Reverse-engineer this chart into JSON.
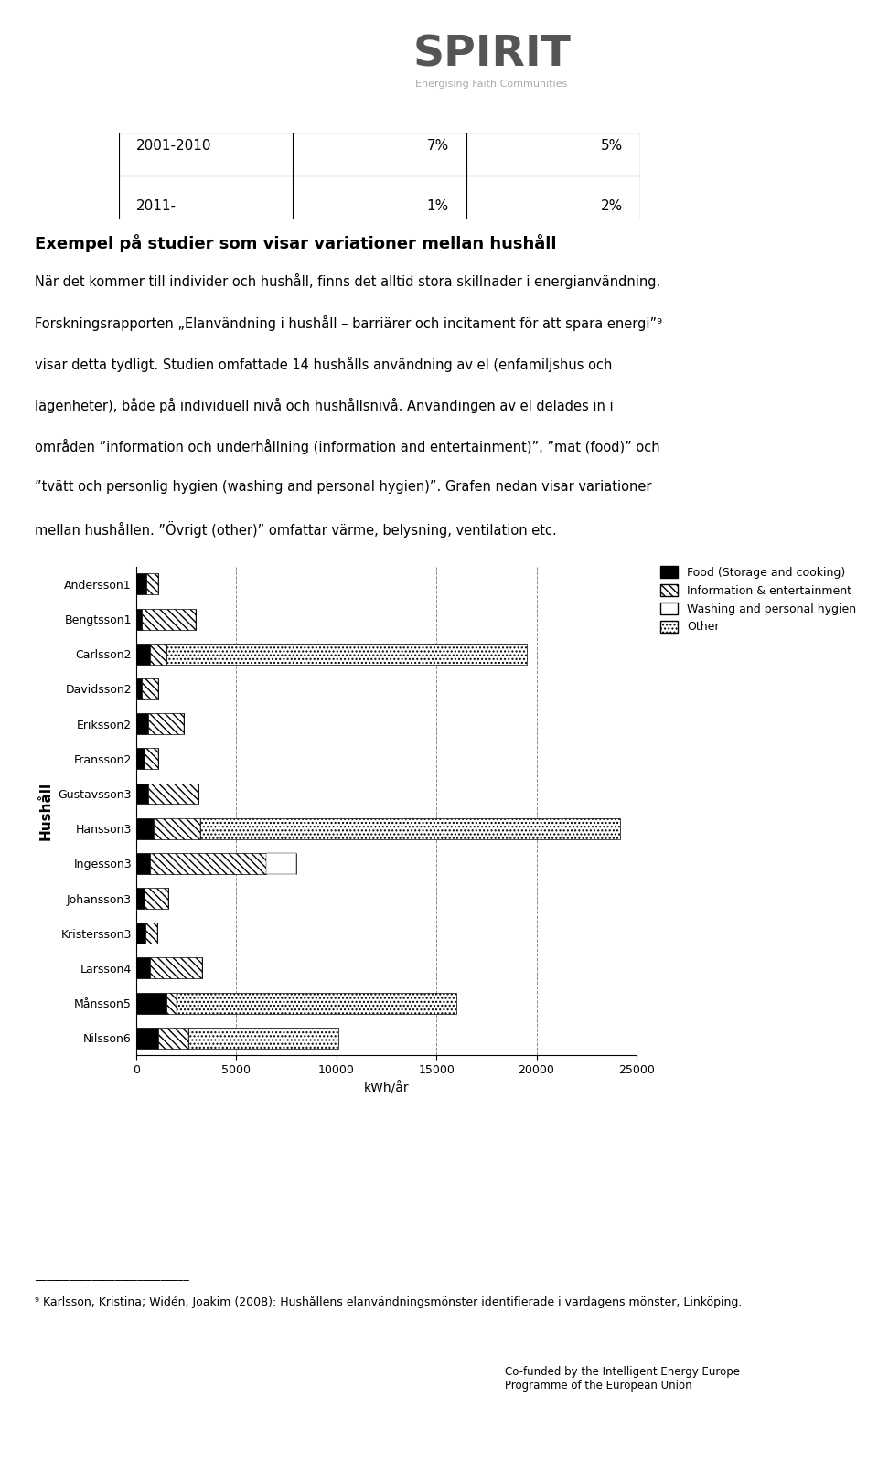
{
  "households": [
    "Andersson1",
    "Bengtsson1",
    "Carlsson2",
    "Davidsson2",
    "Eriksson2",
    "Fransson2",
    "Gustavsson3",
    "Hansson3",
    "Ingesson3",
    "Johansson3",
    "Kristersson3",
    "Larsson4",
    "Månsson5",
    "Nilsson6"
  ],
  "food": [
    500,
    300,
    700,
    300,
    600,
    400,
    600,
    900,
    700,
    400,
    450,
    700,
    1500,
    1100
  ],
  "info_entertainment": [
    600,
    2700,
    800,
    800,
    1800,
    700,
    2500,
    2300,
    5800,
    1200,
    600,
    2600,
    500,
    1500
  ],
  "washing": [
    0,
    0,
    0,
    0,
    0,
    0,
    0,
    0,
    1500,
    0,
    0,
    0,
    0,
    0
  ],
  "other": [
    0,
    0,
    18000,
    0,
    0,
    0,
    0,
    21000,
    0,
    0,
    0,
    0,
    14000,
    7500
  ],
  "xlim": [
    0,
    25000
  ],
  "xticks": [
    0,
    5000,
    10000,
    15000,
    20000,
    25000
  ],
  "xlabel": "kWh/år",
  "ylabel": "Hushåll",
  "legend_labels": [
    "Food (Storage and cooking)",
    "Information & entertainment",
    "Washing and personal hygien",
    "Other"
  ],
  "table_row1": [
    "2001-2010",
    "7%",
    "5%"
  ],
  "table_row2": [
    "2011-",
    "1%",
    "2%"
  ],
  "main_title": "Exempel på studier som visar variationer mellan hushåll",
  "body_text": "När det kommer till individer och hushåll, finns det alltid stora skillnader i energianvändning.\n\nForskningsrapporten „Elanvändning i hushåll – barriärer och incitament för att spara energi”⁹\n\nvisar detta tydligt. Studien omfattade 14 hushålls använding av el (enfamiljshus och\n\nlägenheter), både på individuell nivå och hushållsnivå. Användingen av el delades in i\n\nområden ”information och underhållning (information and entertainment)”, ”mat (food)” och\n\n”tvätt och personlig hygien (washing and personal hygien)”. Grafen nedan visar variationer\n\nmellan hushållen. ”Övrigt (other)” omfattar värme, belysning, ventilation etc.",
  "footnote": "⁹ Karlsson, Kristina; Widén, Joakim (2008): Hushållens elanvändningsmönster identifierade i vardagens mönster, Linköping.",
  "eu_text": "Co-funded by the Intelligent Energy Europe\nProgramme of the European Union",
  "spirit_subtitle": "Energising Faith Communities"
}
